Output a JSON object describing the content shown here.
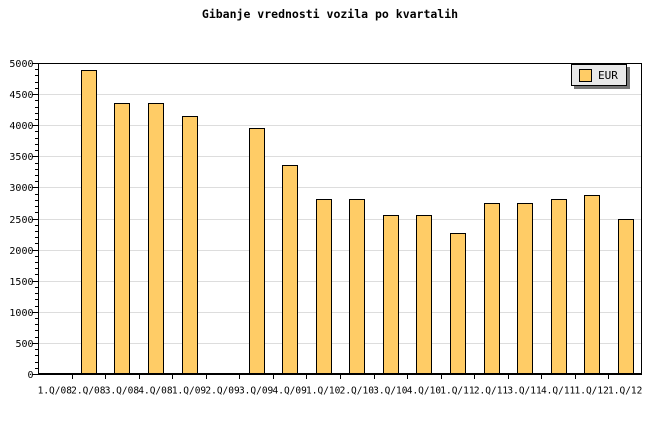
{
  "title": "Gibanje vrednosti vozila po kvartalih",
  "legend": {
    "label": "EUR"
  },
  "chart_data": {
    "type": "bar",
    "title": "Gibanje vrednosti vozila po kvartalih",
    "categories": [
      "1.Q/08",
      "2.Q/08",
      "3.Q/08",
      "4.Q/08",
      "1.Q/09",
      "2.Q/09",
      "3.Q/09",
      "4.Q/09",
      "1.Q/10",
      "2.Q/10",
      "3.Q/10",
      "4.Q/10",
      "1.Q/11",
      "2.Q/11",
      "3.Q/11",
      "4.Q/11",
      "1.Q/12",
      "1.Q/12"
    ],
    "series": [
      {
        "name": "EUR",
        "values": [
          null,
          4890,
          4360,
          4360,
          4150,
          null,
          3960,
          3360,
          2810,
          2810,
          2550,
          2550,
          2270,
          2750,
          2750,
          2820,
          2880,
          2500
        ]
      }
    ],
    "xlabel": "",
    "ylabel": "",
    "ylim": [
      0,
      5000
    ],
    "ytick_major": 500,
    "ytick_minor": 100,
    "ytick_labels": [
      "0",
      "500",
      "1000",
      "1500",
      "2000",
      "2500",
      "3000",
      "3500",
      "4000",
      "4500",
      "5000"
    ],
    "grid": "horizontal-major",
    "legend_position": "top-right",
    "colors": {
      "bar_fill": "#FFCC66",
      "bar_border": "#000000",
      "grid": "#DDDDDD",
      "axis": "#000000",
      "legend_bg": "#E8E8E8",
      "background": "#FFFFFF"
    }
  }
}
